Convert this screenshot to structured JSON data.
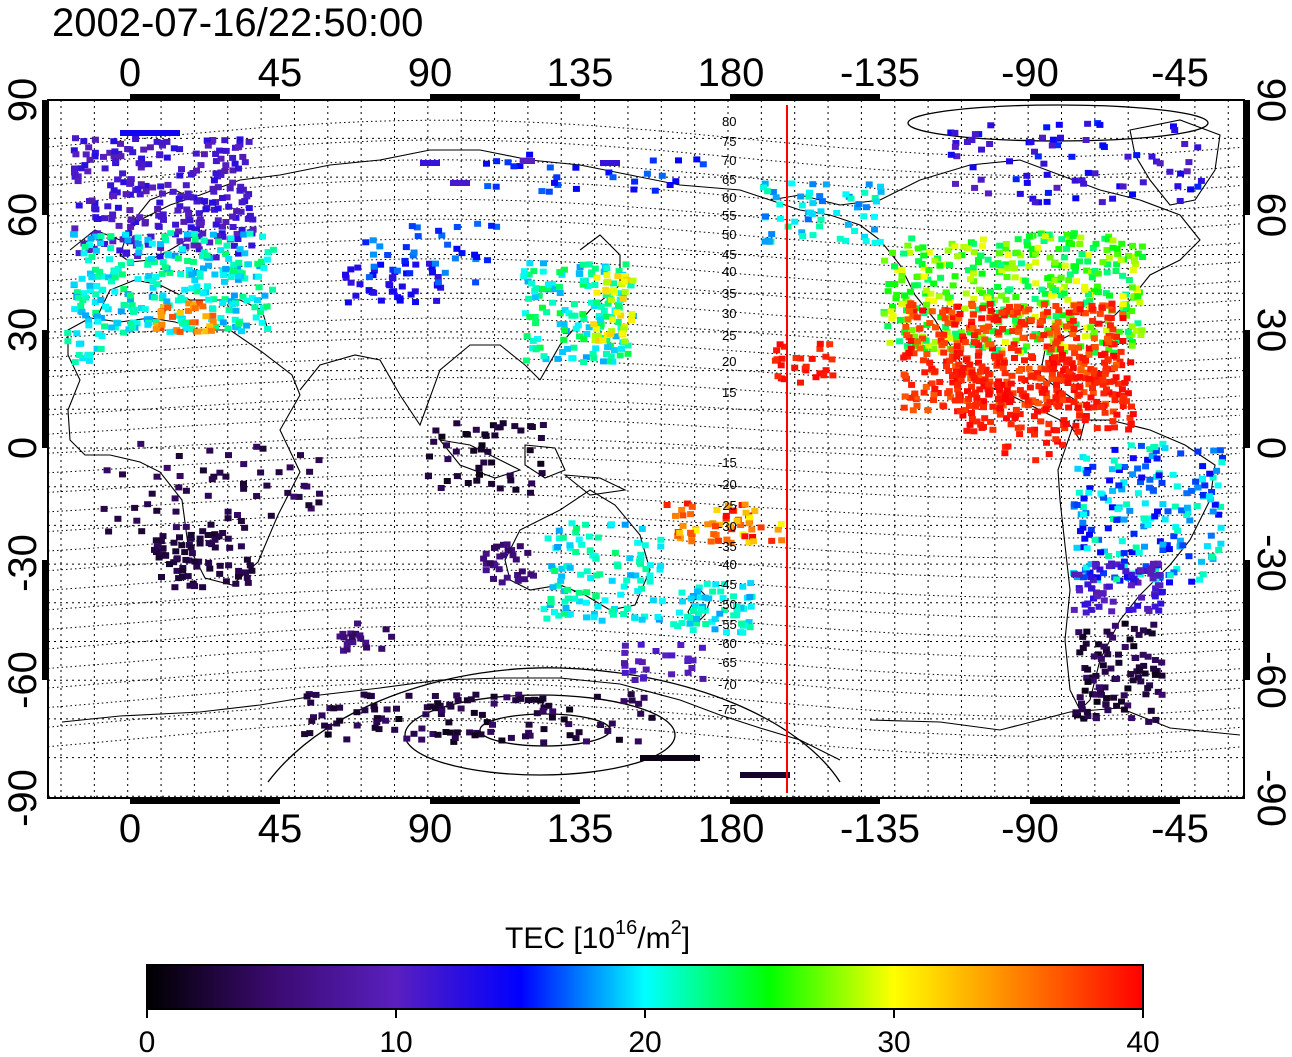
{
  "timestamp": "2002-07-16/22:50:00",
  "colorbar": {
    "label_main": "TEC  [10",
    "label_exp1": "16",
    "label_mid": "/m",
    "label_exp2": "2",
    "label_end": "]",
    "ticks": [
      "0",
      "10",
      "20",
      "30",
      "40"
    ],
    "stops": [
      "#000000",
      "#3a0a6e",
      "#5a1fbf",
      "#0000ff",
      "#00ffff",
      "#00ff00",
      "#ffff00",
      "#ff8000",
      "#ff0000"
    ]
  },
  "map": {
    "lon_ticks": [
      "0",
      "45",
      "90",
      "135",
      "180",
      "-135",
      "-90",
      "-45"
    ],
    "lat_ticks": [
      "90",
      "60",
      "30",
      "0",
      "-30",
      "-60",
      "-90"
    ],
    "magnetic_lat_labels_north": [
      "80",
      "75",
      "70",
      "65",
      "60",
      "55",
      "50",
      "45",
      "40",
      "35",
      "30",
      "25",
      "20",
      "15"
    ],
    "magnetic_lat_labels_south": [
      "-15",
      "-20",
      "-25",
      "-30",
      "-35",
      "-40",
      "-45",
      "-50",
      "-55",
      "-60",
      "-65",
      "-70",
      "-75"
    ],
    "terminator_longitude": -165,
    "terminator_color": "#ff0000"
  }
}
